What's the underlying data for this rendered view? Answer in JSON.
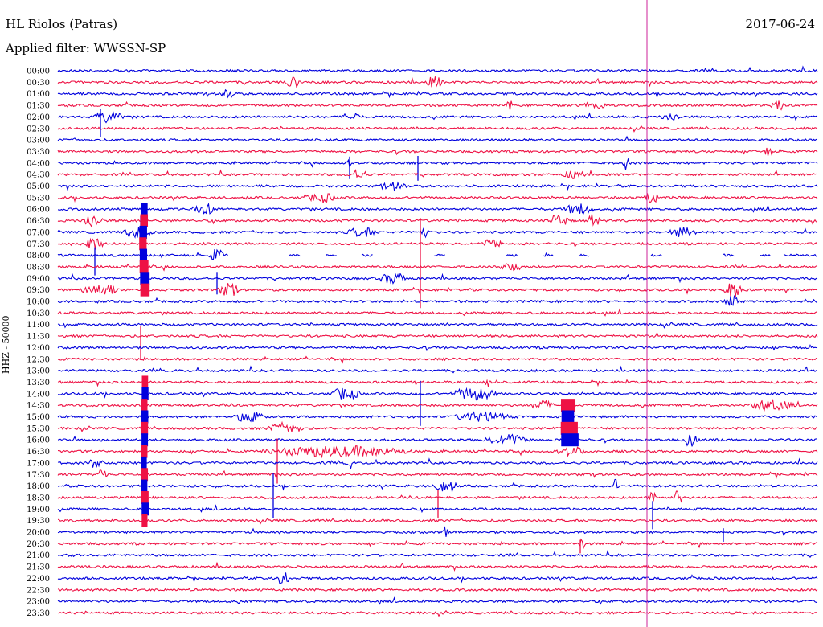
{
  "header": {
    "station": "HL Riolos (Patras)",
    "date": "2017-06-24",
    "filter": "Applied filter: WWSSN-SP"
  },
  "chart_data": {
    "type": "line",
    "kind": "helicorder",
    "ylabel": "HHZ - 50000",
    "row_labels": [
      "00:00",
      "00:30",
      "01:00",
      "01:30",
      "02:00",
      "02:30",
      "03:00",
      "03:30",
      "04:00",
      "04:30",
      "05:00",
      "05:30",
      "06:00",
      "06:30",
      "07:00",
      "07:30",
      "08:00",
      "08:30",
      "09:00",
      "09:30",
      "10:00",
      "10:30",
      "11:00",
      "11:30",
      "12:00",
      "12:30",
      "13:00",
      "13:30",
      "14:00",
      "14:30",
      "15:00",
      "15:30",
      "16:00",
      "16:30",
      "17:00",
      "17:30",
      "18:00",
      "18:30",
      "19:00",
      "19:30",
      "20:00",
      "20:30",
      "21:00",
      "21:30",
      "22:00",
      "22:30",
      "23:00",
      "23:30"
    ],
    "row_colors": [
      "#0000dd",
      "#ee1144"
    ],
    "gap_8_00": "no data after about 08:07",
    "current_time_marker": "about 08:22"
  }
}
